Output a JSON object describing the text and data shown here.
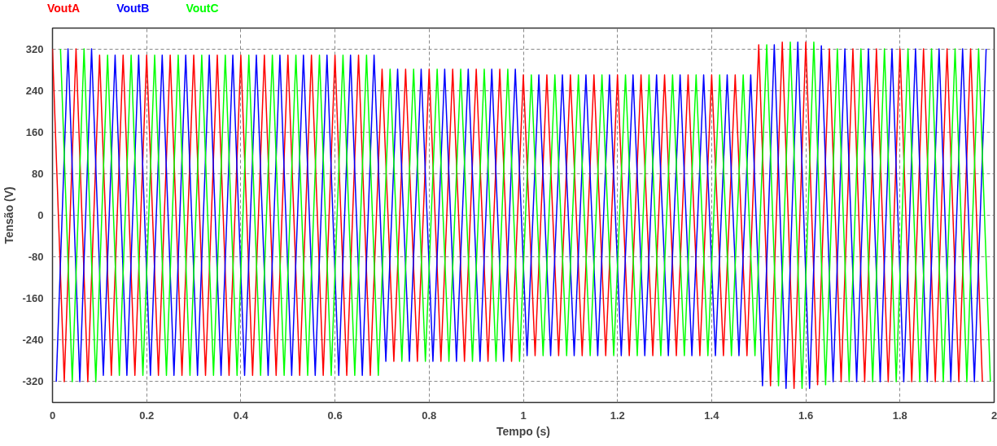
{
  "chart_data": {
    "type": "line",
    "xlabel": "Tempo (s)",
    "ylabel": "Tensão (V)",
    "xlim": [
      0,
      2
    ],
    "ylim": [
      -360,
      360
    ],
    "xticks": [
      0,
      0.2,
      0.4,
      0.6,
      0.8,
      1,
      1.2,
      1.4,
      1.6,
      1.8,
      2
    ],
    "yticks": [
      -320,
      -240,
      -160,
      -80,
      0,
      80,
      160,
      240,
      320
    ],
    "grid": true,
    "marker": "none",
    "line_style": "solid",
    "series": [
      {
        "name": "VoutA",
        "color": "#ff0000",
        "x": [
          0,
          0.025,
          0.05,
          0.075,
          0.1,
          0.125,
          0.15,
          0.175,
          0.2,
          0.225,
          0.25,
          0.275,
          0.3,
          0.325,
          0.35,
          0.375,
          0.4,
          0.425,
          0.45,
          0.475,
          0.5,
          0.525,
          0.55,
          0.575,
          0.6,
          0.625,
          0.65,
          0.675,
          0.7,
          0.725,
          0.75,
          0.775,
          0.8,
          0.825,
          0.85,
          0.875,
          0.9,
          0.925,
          0.95,
          0.975,
          1,
          1.025,
          1.05,
          1.075,
          1.1,
          1.125,
          1.15,
          1.175,
          1.2,
          1.225,
          1.25,
          1.275,
          1.3,
          1.325,
          1.35,
          1.375,
          1.4,
          1.425,
          1.45,
          1.475,
          1.5,
          1.525,
          1.55,
          1.575,
          1.6,
          1.625,
          1.65,
          1.675,
          1.7,
          1.725,
          1.75,
          1.775,
          1.8,
          1.825,
          1.85,
          1.875,
          1.9,
          1.925,
          1.95,
          1.975
        ],
        "values": [
          320,
          -320,
          320,
          -320,
          308,
          -308,
          308,
          -308,
          308,
          -308,
          308,
          -308,
          308,
          -308,
          308,
          -308,
          308,
          -308,
          308,
          -308,
          308,
          -308,
          308,
          -308,
          308,
          -308,
          308,
          -308,
          281,
          -281,
          281,
          -281,
          281,
          -281,
          281,
          -281,
          281,
          -281,
          281,
          -281,
          270,
          -270,
          270,
          -270,
          270,
          -270,
          270,
          -270,
          270,
          -270,
          270,
          -270,
          270,
          -270,
          270,
          -270,
          270,
          -270,
          270,
          -270,
          328,
          -328,
          333,
          -333,
          333,
          -326,
          320,
          -320,
          320,
          -320,
          320,
          -320,
          320,
          -320,
          320,
          -320,
          320,
          -320,
          320,
          -320
        ]
      },
      {
        "name": "VoutB",
        "color": "#0000ff",
        "x": [
          0.008,
          0.033,
          0.058,
          0.083,
          0.108,
          0.133,
          0.158,
          0.183,
          0.208,
          0.233,
          0.258,
          0.283,
          0.308,
          0.333,
          0.358,
          0.383,
          0.408,
          0.433,
          0.458,
          0.483,
          0.508,
          0.533,
          0.558,
          0.583,
          0.608,
          0.633,
          0.658,
          0.683,
          0.708,
          0.733,
          0.758,
          0.783,
          0.808,
          0.833,
          0.858,
          0.883,
          0.908,
          0.933,
          0.958,
          0.983,
          1.008,
          1.033,
          1.058,
          1.083,
          1.108,
          1.133,
          1.158,
          1.183,
          1.208,
          1.233,
          1.258,
          1.283,
          1.308,
          1.333,
          1.358,
          1.383,
          1.408,
          1.433,
          1.458,
          1.483,
          1.508,
          1.533,
          1.558,
          1.583,
          1.608,
          1.633,
          1.658,
          1.683,
          1.708,
          1.733,
          1.758,
          1.783,
          1.808,
          1.833,
          1.858,
          1.883,
          1.908,
          1.933,
          1.958,
          1.983
        ],
        "values": [
          -320,
          320,
          -320,
          320,
          -308,
          308,
          -308,
          308,
          -308,
          308,
          -308,
          308,
          -308,
          308,
          -308,
          308,
          -308,
          308,
          -308,
          308,
          -308,
          308,
          -308,
          308,
          -308,
          308,
          -308,
          308,
          -281,
          281,
          -281,
          281,
          -281,
          281,
          -281,
          281,
          -281,
          281,
          -281,
          281,
          -270,
          270,
          -270,
          270,
          -270,
          270,
          -270,
          270,
          -270,
          270,
          -270,
          270,
          -270,
          270,
          -270,
          270,
          -270,
          270,
          -270,
          270,
          -328,
          328,
          -333,
          333,
          -333,
          326,
          -320,
          320,
          -320,
          320,
          -320,
          320,
          -320,
          320,
          -320,
          320,
          -320,
          320,
          -320,
          320
        ]
      },
      {
        "name": "VoutC",
        "color": "#00ff00",
        "x": [
          0.017,
          0.042,
          0.067,
          0.092,
          0.117,
          0.142,
          0.167,
          0.192,
          0.217,
          0.242,
          0.267,
          0.292,
          0.317,
          0.342,
          0.367,
          0.392,
          0.417,
          0.442,
          0.467,
          0.492,
          0.517,
          0.542,
          0.567,
          0.592,
          0.617,
          0.642,
          0.667,
          0.692,
          0.717,
          0.742,
          0.767,
          0.792,
          0.817,
          0.842,
          0.867,
          0.892,
          0.917,
          0.942,
          0.967,
          0.992,
          1.017,
          1.042,
          1.067,
          1.092,
          1.117,
          1.142,
          1.167,
          1.192,
          1.217,
          1.242,
          1.267,
          1.292,
          1.317,
          1.342,
          1.367,
          1.392,
          1.417,
          1.442,
          1.467,
          1.492,
          1.517,
          1.542,
          1.567,
          1.592,
          1.617,
          1.642,
          1.667,
          1.692,
          1.717,
          1.742,
          1.767,
          1.792,
          1.817,
          1.842,
          1.867,
          1.892,
          1.917,
          1.942,
          1.967,
          1.992
        ],
        "values": [
          320,
          -320,
          320,
          -320,
          308,
          -308,
          308,
          -308,
          308,
          -308,
          308,
          -308,
          308,
          -308,
          308,
          -308,
          308,
          -308,
          308,
          -308,
          308,
          -308,
          308,
          -308,
          308,
          -308,
          308,
          -308,
          281,
          -281,
          281,
          -281,
          281,
          -281,
          281,
          -281,
          281,
          -281,
          281,
          -281,
          270,
          -270,
          270,
          -270,
          270,
          -270,
          270,
          -270,
          270,
          -270,
          270,
          -270,
          270,
          -270,
          270,
          -270,
          270,
          -270,
          270,
          -270,
          328,
          -328,
          333,
          -333,
          333,
          -326,
          320,
          -320,
          320,
          -320,
          320,
          -320,
          320,
          -320,
          320,
          -320,
          320,
          -320,
          320,
          -320
        ]
      }
    ]
  }
}
